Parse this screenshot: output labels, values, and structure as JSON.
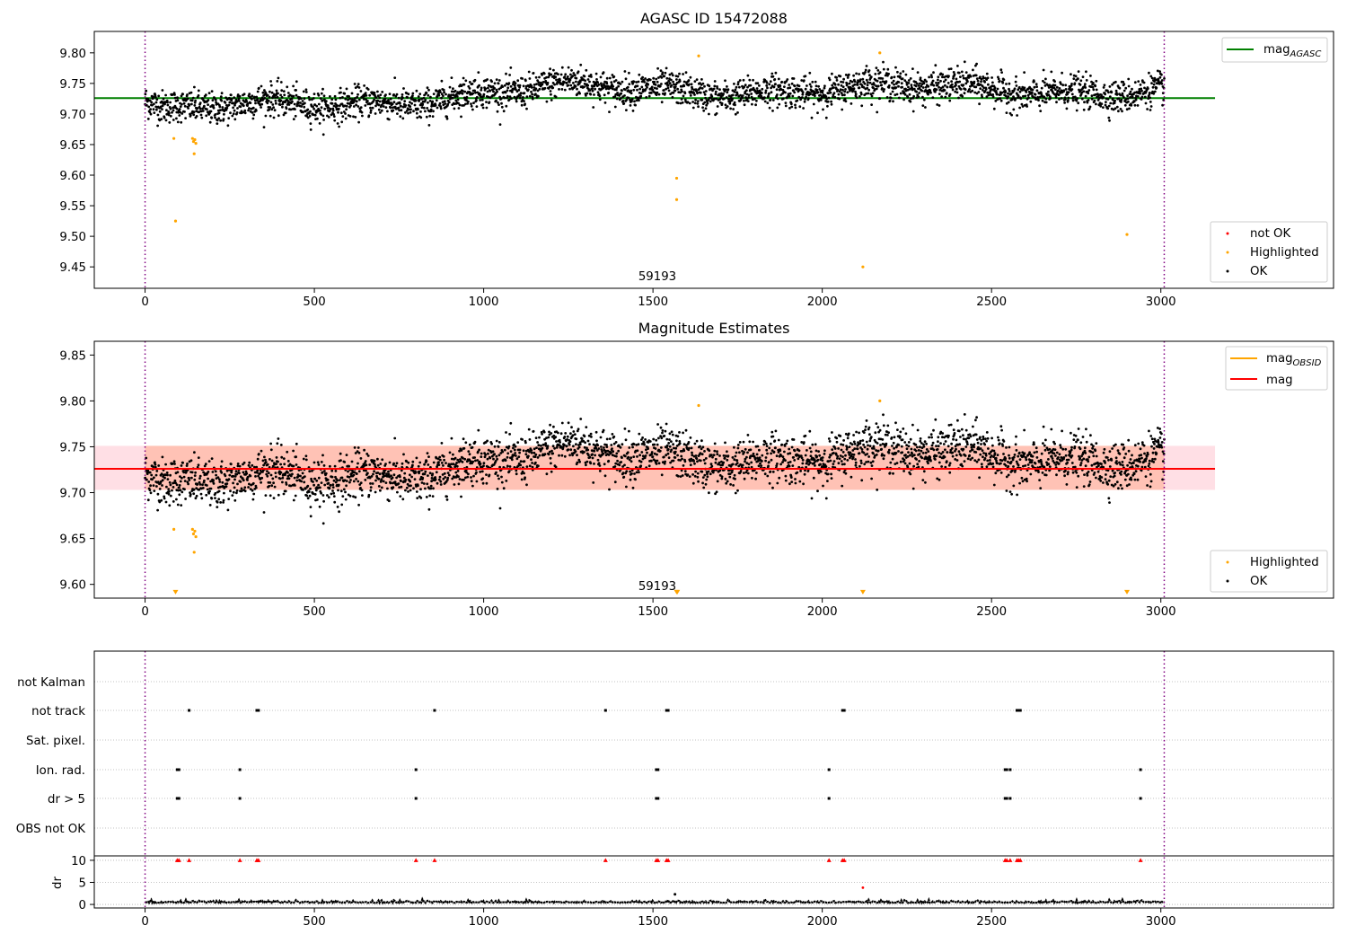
{
  "chart_data": [
    {
      "type": "scatter",
      "title": "AGASC ID 15472088",
      "xlim": [
        -150,
        3510
      ],
      "ylim": [
        9.415,
        9.835
      ],
      "xticks": [
        0,
        500,
        1000,
        1500,
        2000,
        2500,
        3000
      ],
      "yticks": [
        9.45,
        9.5,
        9.55,
        9.6,
        9.65,
        9.7,
        9.75,
        9.8
      ],
      "annotation": {
        "text": "59193",
        "x": 1500,
        "y": 9.435
      },
      "vlines": [
        0,
        3010
      ],
      "hline": {
        "label": "mag",
        "label_sub": "AGASC",
        "y": 9.726,
        "x_range": [
          -150,
          3160
        ],
        "color": "#008000"
      },
      "series": [
        {
          "name": "not OK",
          "color": "#ff0000",
          "points": []
        },
        {
          "name": "Highlighted",
          "color": "#ffa500",
          "points": [
            [
              85,
              9.66
            ],
            [
              90,
              9.525
            ],
            [
              140,
              9.66
            ],
            [
              143,
              9.655
            ],
            [
              145,
              9.635
            ],
            [
              147,
              9.658
            ],
            [
              150,
              9.652
            ],
            [
              1570,
              9.595
            ],
            [
              1570,
              9.56
            ],
            [
              1635,
              9.795
            ],
            [
              2120,
              9.45
            ],
            [
              2170,
              9.8
            ],
            [
              2900,
              9.503
            ]
          ]
        },
        {
          "name": "OK",
          "color": "#000000",
          "n": 3000,
          "x_range": [
            0,
            3010
          ]
        }
      ],
      "legend_lines": [
        {
          "label": "mag",
          "label_sub": "AGASC",
          "color": "#008000"
        }
      ],
      "legend_points": [
        {
          "label": "not OK",
          "color": "#ff0000"
        },
        {
          "label": "Highlighted",
          "color": "#ffa500"
        },
        {
          "label": "OK",
          "color": "#000000"
        }
      ]
    },
    {
      "type": "scatter",
      "title": "Magnitude Estimates",
      "xlim": [
        -150,
        3510
      ],
      "ylim": [
        9.585,
        9.865
      ],
      "xticks": [
        0,
        500,
        1000,
        1500,
        2000,
        2500,
        3000
      ],
      "yticks": [
        9.6,
        9.65,
        9.7,
        9.75,
        9.8,
        9.85
      ],
      "annotation": {
        "text": "59193",
        "x": 1500,
        "y": 9.598
      },
      "vlines": [
        0,
        3010
      ],
      "band_outer": {
        "y": [
          9.703,
          9.751
        ],
        "x_range": [
          -150,
          3160
        ],
        "color": "#ffc0cb"
      },
      "band_inner": {
        "y": [
          9.703,
          9.751
        ],
        "x_range": [
          0,
          3010
        ],
        "color": "#ffa07a"
      },
      "lines": [
        {
          "label": "mag",
          "label_sub": "OBSID",
          "y": 9.727,
          "color": "#ffa500"
        },
        {
          "label": "mag",
          "y": 9.726,
          "color": "#ff0000",
          "x_range": [
            -150,
            3160
          ]
        }
      ],
      "series": [
        {
          "name": "Highlighted",
          "color": "#ffa500",
          "points": [
            [
              85,
              9.66
            ],
            [
              140,
              9.66
            ],
            [
              143,
              9.655
            ],
            [
              145,
              9.635
            ],
            [
              147,
              9.658
            ],
            [
              150,
              9.652
            ],
            [
              1635,
              9.795
            ],
            [
              2170,
              9.8
            ]
          ]
        },
        {
          "name": "OK",
          "color": "#000000",
          "n": 3000,
          "x_range": [
            0,
            3010
          ]
        }
      ],
      "clipped_markers": {
        "color": "#ffa500",
        "x": [
          90,
          1570,
          1572,
          2120,
          2900
        ],
        "y": 9.591
      },
      "legend_lines": [
        {
          "label": "mag",
          "label_sub": "OBSID",
          "color": "#ffa500"
        },
        {
          "label": "mag",
          "color": "#ff0000"
        }
      ],
      "legend_points": [
        {
          "label": "Highlighted",
          "color": "#ffa500"
        },
        {
          "label": "OK",
          "color": "#000000"
        }
      ]
    },
    {
      "type": "scatter",
      "title": "",
      "xlim": [
        -150,
        3510
      ],
      "xticks": [
        0,
        500,
        1000,
        1500,
        2000,
        2500,
        3000
      ],
      "vlines": [
        0,
        3010
      ],
      "flag_labels": [
        "not Kalman",
        "not track",
        "Sat. pixel.",
        "Ion. rad.",
        "dr > 5",
        "OBS not OK"
      ],
      "flags": {
        "not Kalman": [],
        "not track": [
          130,
          330,
          335,
          855,
          1360,
          1540,
          1545,
          2060,
          2065,
          2575,
          2580,
          2585
        ],
        "Sat. pixel.": [],
        "Ion. rad.": [
          95,
          100,
          280,
          800,
          1510,
          1515,
          2020,
          2540,
          2545,
          2555,
          2940
        ],
        "dr > 5": [
          95,
          100,
          280,
          800,
          1510,
          1515,
          2020,
          2540,
          2545,
          2555,
          2940
        ],
        "OBS not OK": []
      },
      "dr_ylabel": "dr",
      "dr_yticks": [
        0,
        5,
        10
      ],
      "dr_ylim": [
        -0.8,
        11
      ],
      "dr_clipped": {
        "color": "#ff0000",
        "y": 10,
        "x": [
          95,
          100,
          130,
          280,
          330,
          335,
          800,
          855,
          1360,
          1510,
          1515,
          1540,
          1545,
          2020,
          2060,
          2065,
          2540,
          2545,
          2555,
          2575,
          2580,
          2585,
          2940
        ]
      },
      "dr_red_points": [
        [
          2120,
          3.8
        ]
      ],
      "dr_black_points": [
        [
          1565,
          2.3
        ]
      ]
    }
  ]
}
